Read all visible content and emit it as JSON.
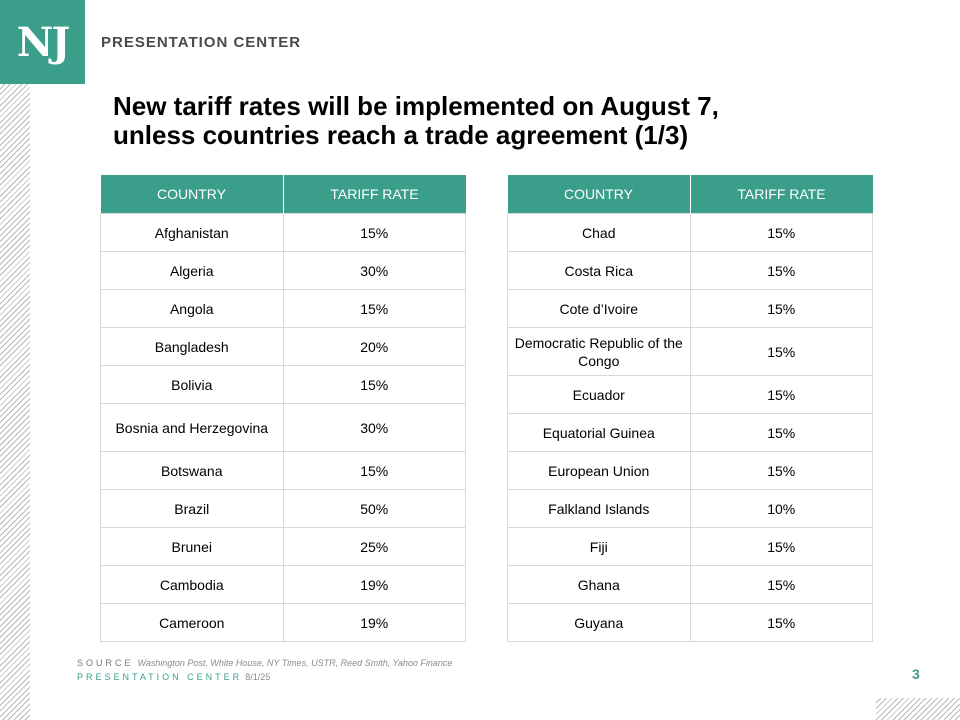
{
  "logo": {
    "text": "NJ"
  },
  "brand": "PRESENTATION CENTER",
  "title": {
    "line1": "New tariff rates will be implemented on August 7,",
    "line2": "unless countries reach a trade agreement (1/3)"
  },
  "tables": [
    {
      "headers": [
        "COUNTRY",
        "TARIFF RATE"
      ],
      "rows": [
        [
          "Afghanistan",
          "15%"
        ],
        [
          "Algeria",
          "30%"
        ],
        [
          "Angola",
          "15%"
        ],
        [
          "Bangladesh",
          "20%"
        ],
        [
          "Bolivia",
          "15%"
        ],
        [
          "Bosnia and Herzegovina",
          "30%"
        ],
        [
          "Botswana",
          "15%"
        ],
        [
          "Brazil",
          "50%"
        ],
        [
          "Brunei",
          "25%"
        ],
        [
          "Cambodia",
          "19%"
        ],
        [
          "Cameroon",
          "19%"
        ]
      ]
    },
    {
      "headers": [
        "COUNTRY",
        "TARIFF RATE"
      ],
      "rows": [
        [
          "Chad",
          "15%"
        ],
        [
          "Costa Rica",
          "15%"
        ],
        [
          "Cote d’Ivoire",
          "15%"
        ],
        [
          "Democratic Republic of the Congo",
          "15%"
        ],
        [
          "Ecuador",
          "15%"
        ],
        [
          "Equatorial Guinea",
          "15%"
        ],
        [
          "European Union",
          "15%"
        ],
        [
          "Falkland Islands",
          "10%"
        ],
        [
          "Fiji",
          "15%"
        ],
        [
          "Ghana",
          "15%"
        ],
        [
          "Guyana",
          "15%"
        ]
      ]
    }
  ],
  "footer": {
    "source_label": "SOURCE",
    "source_text": "Washington Post, White House, NY Times, USTR, Reed Smith, Yahoo Finance",
    "pc_label": "PRESENTATION CENTER",
    "date": "8/1/25"
  },
  "page_number": "3",
  "colors": {
    "accent": "#3a9e8a",
    "border": "#d9d9d9",
    "hatch": "#b9b9b9"
  }
}
